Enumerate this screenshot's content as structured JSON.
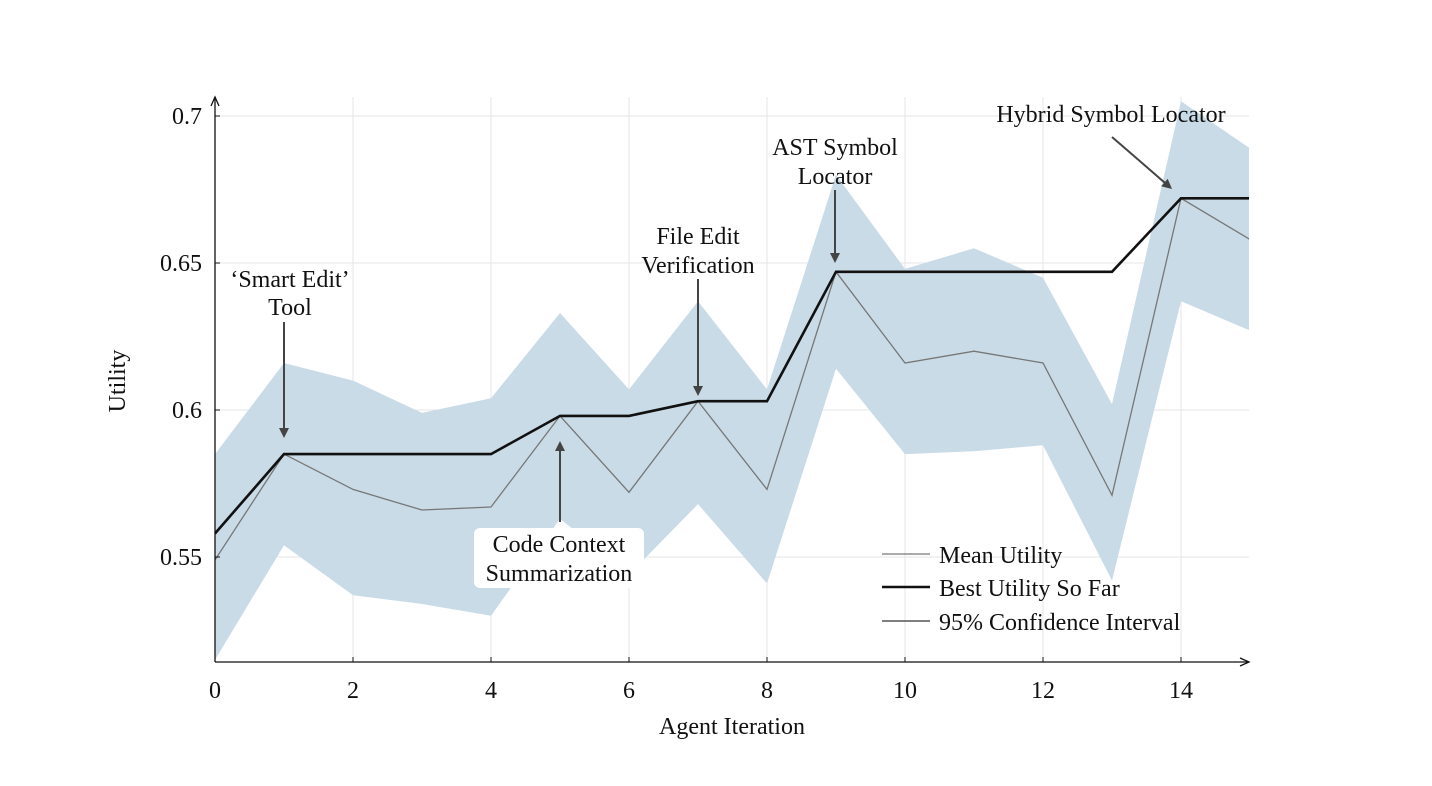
{
  "chart_data": {
    "type": "line",
    "title": "",
    "xlabel": "Agent Iteration",
    "ylabel": "Utility",
    "xlim": [
      0,
      15
    ],
    "ylim": [
      0.515,
      0.705
    ],
    "grid": true,
    "x_ticks": [
      0,
      2,
      4,
      6,
      8,
      10,
      12,
      14
    ],
    "x_tick_labels": [
      "0",
      "2",
      "4",
      "6",
      "8",
      "10",
      "12",
      "14"
    ],
    "y_ticks": [
      0.55,
      0.6,
      0.65,
      0.7
    ],
    "y_tick_labels": [
      "0.55",
      "0.6",
      "0.65",
      "0.7"
    ],
    "legend_position": "bottom-right",
    "legend": [
      "Mean Utility",
      "Best Utility So Far",
      "95% Confidence Interval"
    ],
    "colors": {
      "ci": "#c9dbe7",
      "mean": "#777777",
      "best": "#111111",
      "grid": "#e6e6e6",
      "axis": "#111111"
    },
    "series": [
      {
        "name": "Mean Utility",
        "x": [
          0,
          1,
          2,
          3,
          4,
          5,
          6,
          7,
          8,
          9,
          10,
          11,
          12,
          13,
          14,
          15
        ],
        "values": [
          0.549,
          0.585,
          0.573,
          0.566,
          0.567,
          0.598,
          0.572,
          0.603,
          0.573,
          0.647,
          0.616,
          0.62,
          0.616,
          0.571,
          0.672,
          0.658
        ]
      },
      {
        "name": "Best Utility So Far",
        "x": [
          0,
          1,
          2,
          3,
          4,
          5,
          6,
          7,
          8,
          9,
          10,
          11,
          12,
          13,
          14,
          15
        ],
        "values": [
          0.558,
          0.585,
          0.585,
          0.585,
          0.585,
          0.598,
          0.598,
          0.603,
          0.603,
          0.647,
          0.647,
          0.647,
          0.647,
          0.647,
          0.672,
          0.672
        ]
      },
      {
        "name": "95% Confidence Interval",
        "x": [
          0,
          1,
          2,
          3,
          4,
          5,
          6,
          7,
          8,
          9,
          10,
          11,
          12,
          13,
          14,
          15
        ],
        "lower": [
          0.515,
          0.554,
          0.537,
          0.534,
          0.53,
          0.563,
          0.544,
          0.568,
          0.541,
          0.614,
          0.585,
          0.586,
          0.588,
          0.542,
          0.637,
          0.627
        ],
        "upper": [
          0.585,
          0.616,
          0.61,
          0.599,
          0.604,
          0.633,
          0.607,
          0.637,
          0.607,
          0.68,
          0.648,
          0.655,
          0.645,
          0.602,
          0.705,
          0.689
        ]
      }
    ],
    "annotations": [
      {
        "id": "smart-edit",
        "lines": [
          "‘Smart Edit’",
          "Tool"
        ],
        "x": 1,
        "y": 0.585,
        "direction": "down"
      },
      {
        "id": "code-context",
        "lines": [
          "Code Context",
          "Summarization"
        ],
        "x": 5,
        "y": 0.598,
        "direction": "up"
      },
      {
        "id": "file-edit",
        "lines": [
          "File Edit",
          "Verification"
        ],
        "x": 7,
        "y": 0.603,
        "direction": "down"
      },
      {
        "id": "ast-symbol",
        "lines": [
          "AST Symbol",
          "Locator"
        ],
        "x": 9,
        "y": 0.647,
        "direction": "down"
      },
      {
        "id": "hybrid-symbol",
        "lines": [
          "Hybrid Symbol Locator"
        ],
        "x": 14,
        "y": 0.672,
        "direction": "diagonal"
      }
    ]
  }
}
